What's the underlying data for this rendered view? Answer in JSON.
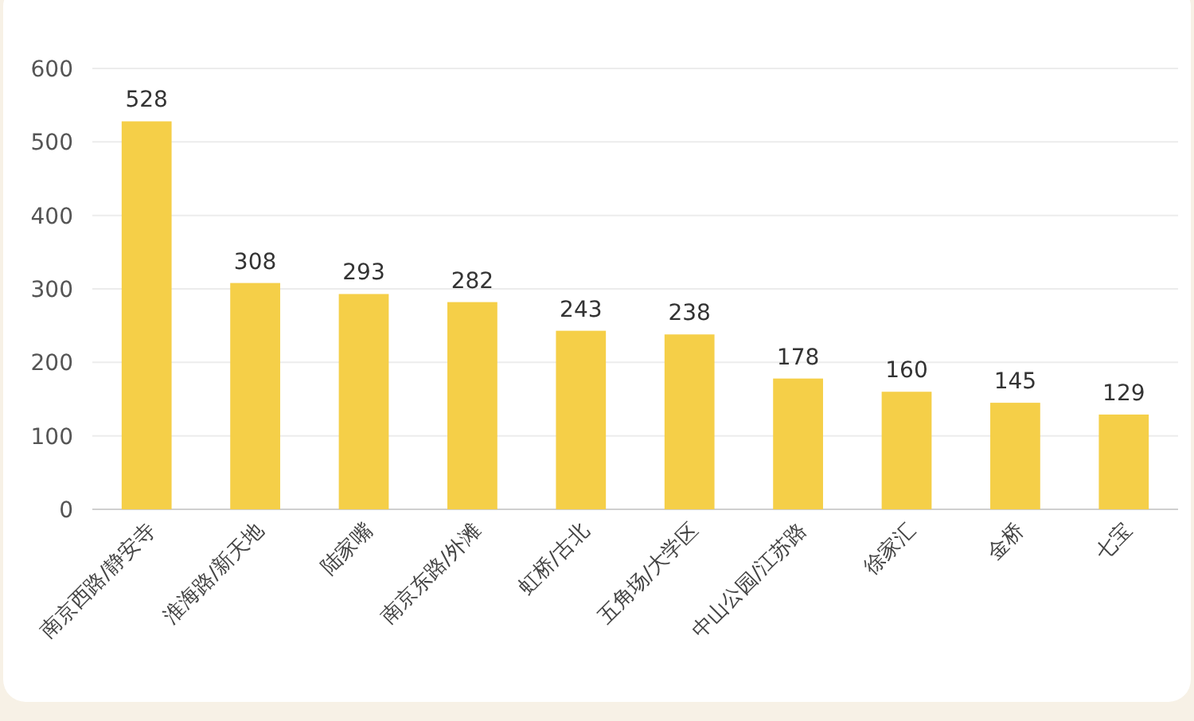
{
  "chart_data": {
    "type": "bar",
    "categories": [
      "南京西路/静安寺",
      "淮海路/新天地",
      "陆家嘴",
      "南京东路/外滩",
      "虹桥/古北",
      "五角场/大学区",
      "中山公园/江苏路",
      "徐家汇",
      "金桥",
      "七宝"
    ],
    "values": [
      528,
      308,
      293,
      282,
      243,
      238,
      178,
      160,
      145,
      129
    ],
    "color": "#f5cf48",
    "ylim": [
      0,
      600
    ],
    "yticks": [
      0,
      100,
      200,
      300,
      400,
      500,
      600
    ],
    "grid": "y",
    "data_labels": true
  }
}
